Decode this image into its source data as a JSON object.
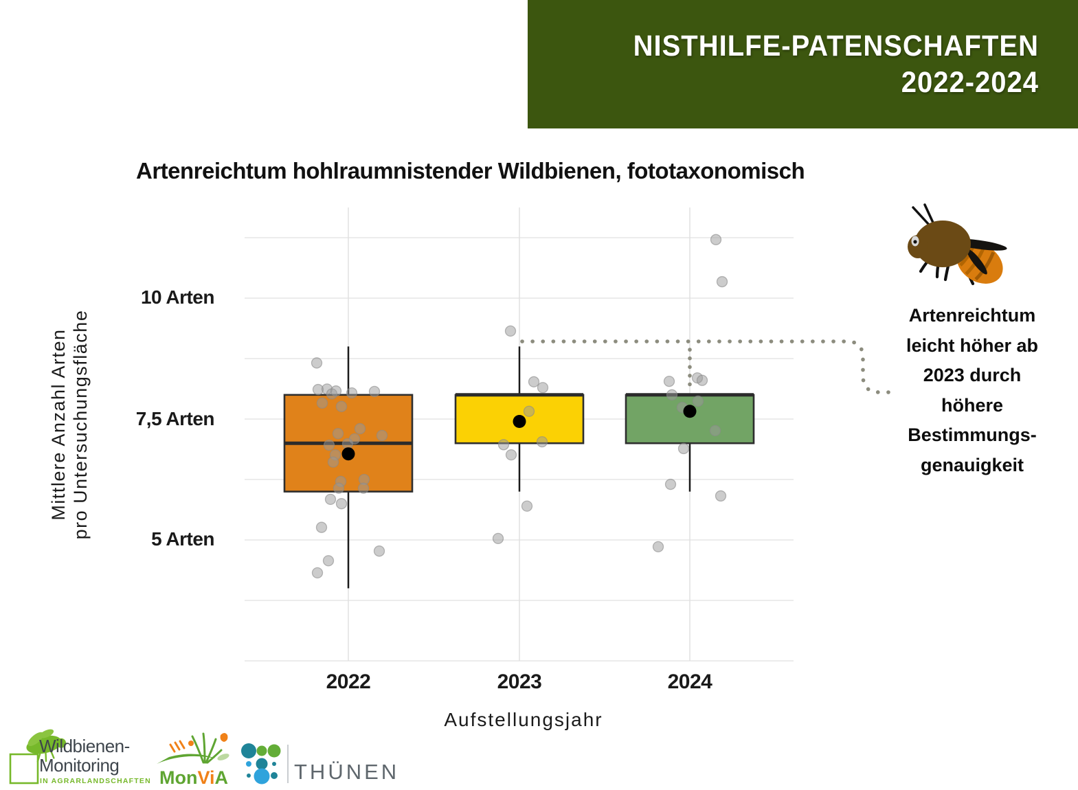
{
  "banner": {
    "title_line1": "NISTHILFE-PATENSCHAFTEN",
    "title_line2": "2022-2024",
    "bg_color": "#3C560F"
  },
  "chart_title": "Artenreichtum hohlraumnistender Wildbienen, fototaxonomisch",
  "y_axis": {
    "title_line1": "Mittlere Anzahl Arten",
    "title_line2": "pro Untersuchungsfläche",
    "ticks": [
      {
        "label": "10 Arten",
        "value": 10
      },
      {
        "label": "7,5 Arten",
        "value": 7.5
      },
      {
        "label": "5 Arten",
        "value": 5
      }
    ]
  },
  "x_axis": {
    "title": "Aufstellungsjahr"
  },
  "annotation": {
    "lines": [
      "Artenreichtum",
      "leicht höher ab",
      "2023 durch",
      "höhere",
      "Bestimmungs-",
      "genauigkeit"
    ],
    "connector_color": "#8C8C7E"
  },
  "logos": {
    "wildbienen": {
      "line1": "Wildbienen-",
      "line2": "Monitoring",
      "subline": "IN AGRARLANDSCHAFTEN",
      "accent_color": "#76B82A"
    },
    "monvia": {
      "parts": [
        {
          "text": "Mon",
          "color": "#5FA532"
        },
        {
          "text": "Vi",
          "color": "#F08118"
        },
        {
          "text": "A",
          "color": "#5FA532"
        }
      ]
    },
    "thuenen": {
      "text": "THÜNEN",
      "teal": "#1F8498",
      "green": "#63AD37",
      "blue": "#2FA3DC"
    }
  },
  "chart_data": {
    "type": "box",
    "title": "Artenreichtum hohlraumnistender Wildbienen, fototaxonomisch",
    "xlabel": "Aufstellungsjahr",
    "ylabel": "Mittlere Anzahl Arten pro Untersuchungsfläche",
    "ylim": [
      2.5,
      11.9
    ],
    "grid": true,
    "y_tick_values": [
      10,
      7.5,
      5
    ],
    "grid_values": [
      11.25,
      10,
      8.75,
      7.5,
      6.25,
      5,
      3.75,
      2.5
    ],
    "categories": [
      "2022",
      "2023",
      "2024"
    ],
    "series": [
      {
        "name": "2022",
        "color": "#E0821A",
        "whisker_low": 4.0,
        "q1": 6.0,
        "median": 7.0,
        "q3": 8.0,
        "whisker_high": 9.0,
        "mean": 6.78,
        "points": [
          [
            -46,
            8.66
          ],
          [
            -44,
            8.11
          ],
          [
            -31,
            8.12
          ],
          [
            -24,
            8.02
          ],
          [
            -18,
            8.08
          ],
          [
            5,
            8.04
          ],
          [
            38,
            8.07
          ],
          [
            -38,
            7.83
          ],
          [
            -10,
            7.76
          ],
          [
            -15,
            7.2
          ],
          [
            17,
            7.3
          ],
          [
            9,
            7.09
          ],
          [
            49,
            7.16
          ],
          [
            -28,
            6.96
          ],
          [
            -1,
            6.99
          ],
          [
            -19,
            6.76
          ],
          [
            -22,
            6.61
          ],
          [
            -11,
            6.21
          ],
          [
            -14,
            6.07
          ],
          [
            23,
            6.25
          ],
          [
            22,
            6.07
          ],
          [
            -26,
            5.84
          ],
          [
            -10,
            5.75
          ],
          [
            -39,
            5.26
          ],
          [
            45,
            4.77
          ],
          [
            -29,
            4.57
          ],
          [
            -45,
            4.32
          ]
        ]
      },
      {
        "name": "2023",
        "color": "#FBD104",
        "whisker_low": 6.0,
        "q1": 7.0,
        "median": 8.0,
        "q3": 8.0,
        "whisker_high": 9.0,
        "mean": 7.45,
        "points": [
          [
            -13,
            9.32
          ],
          [
            21,
            8.27
          ],
          [
            34,
            8.15
          ],
          [
            14,
            7.66
          ],
          [
            33,
            7.03
          ],
          [
            -23,
            6.97
          ],
          [
            -12,
            6.76
          ],
          [
            11,
            5.7
          ],
          [
            -31,
            5.03
          ]
        ]
      },
      {
        "name": "2024",
        "color": "#72A465",
        "whisker_low": 6.0,
        "q1": 7.0,
        "median": 8.0,
        "q3": 8.0,
        "whisker_high": null,
        "mean": 7.66,
        "points": [
          [
            38,
            11.21
          ],
          [
            47,
            10.34
          ],
          [
            -30,
            8.28
          ],
          [
            11,
            8.35
          ],
          [
            18,
            8.3
          ],
          [
            -26,
            8.0
          ],
          [
            12,
            7.87
          ],
          [
            -11,
            7.74
          ],
          [
            37,
            7.26
          ],
          [
            -9,
            6.89
          ],
          [
            -28,
            6.15
          ],
          [
            45,
            5.91
          ],
          [
            -46,
            4.86
          ]
        ]
      }
    ]
  }
}
